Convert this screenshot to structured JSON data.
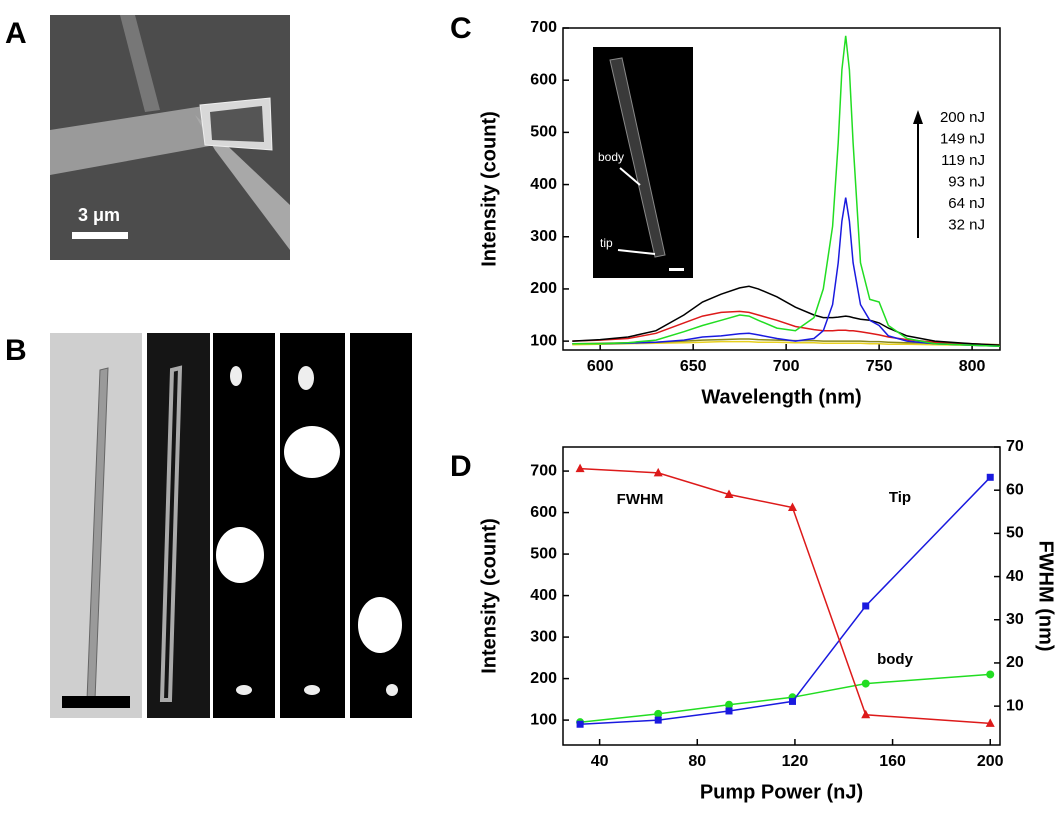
{
  "panel_labels": [
    "A",
    "B",
    "C",
    "D"
  ],
  "scale_bar_label": "3 μm",
  "inset_labels": [
    "body",
    "tip"
  ],
  "chart_data": [
    {
      "type": "line",
      "x_label": "Wavelength (nm)",
      "y_label": "Intensity (count)",
      "xlim": [
        580,
        815
      ],
      "xticks": [
        600,
        650,
        700,
        750,
        800
      ],
      "ylim": [
        83,
        700
      ],
      "yticks": [
        100,
        200,
        300,
        400,
        500,
        600,
        700
      ],
      "legend": "upper right",
      "x": [
        585,
        600,
        615,
        630,
        645,
        655,
        665,
        675,
        680,
        685,
        695,
        705,
        715,
        720,
        725,
        728,
        730,
        732,
        734,
        736,
        740,
        745,
        750,
        755,
        765,
        780,
        800,
        815
      ],
      "series": [
        {
          "name": "200 nJ",
          "color": "#22dd22",
          "values": [
            95,
            95,
            97,
            102,
            118,
            130,
            140,
            150,
            148,
            140,
            125,
            120,
            145,
            200,
            320,
            480,
            620,
            685,
            620,
            480,
            250,
            180,
            175,
            130,
            105,
            95,
            92,
            90
          ]
        },
        {
          "name": "149 nJ",
          "color": "#1a1adf",
          "values": [
            95,
            95,
            96,
            98,
            102,
            108,
            110,
            114,
            115,
            112,
            105,
            100,
            105,
            120,
            170,
            250,
            330,
            375,
            330,
            250,
            170,
            140,
            130,
            110,
            100,
            95,
            92,
            90
          ]
        },
        {
          "name": "119 nJ",
          "color": "#000000",
          "values": [
            100,
            103,
            108,
            120,
            150,
            175,
            190,
            202,
            205,
            200,
            185,
            165,
            150,
            145,
            145,
            146,
            147,
            148,
            147,
            145,
            142,
            140,
            135,
            125,
            110,
            100,
            95,
            92
          ]
        },
        {
          "name": "93 nJ",
          "color": "#dd1a1a",
          "values": [
            100,
            102,
            105,
            115,
            135,
            148,
            155,
            157,
            155,
            150,
            140,
            128,
            122,
            120,
            120,
            121,
            121,
            121,
            120,
            120,
            118,
            115,
            112,
            108,
            103,
            98,
            95,
            92
          ]
        },
        {
          "name": "64 nJ",
          "color": "#8a8a1a",
          "values": [
            95,
            96,
            97,
            98,
            100,
            102,
            103,
            104,
            104,
            103,
            102,
            101,
            101,
            100,
            100,
            100,
            100,
            100,
            100,
            100,
            100,
            99,
            99,
            98,
            97,
            96,
            95,
            93
          ]
        },
        {
          "name": "32 nJ",
          "color": "#e8d020",
          "values": [
            93,
            94,
            95,
            96,
            97,
            98,
            99,
            99,
            99,
            98,
            98,
            97,
            97,
            96,
            96,
            96,
            96,
            96,
            96,
            96,
            96,
            95,
            95,
            94,
            94,
            93,
            92,
            91
          ]
        }
      ]
    },
    {
      "type": "line",
      "x_label": "Pump Power (nJ)",
      "y_label": "Intensity (count)",
      "y2_label": "FWHM (nm)",
      "xlim": [
        25,
        204
      ],
      "xticks": [
        40,
        80,
        120,
        160,
        200
      ],
      "ylim": [
        40,
        758
      ],
      "yticks": [
        100,
        200,
        300,
        400,
        500,
        600,
        700
      ],
      "y2lim": [
        1,
        70
      ],
      "y2ticks": [
        10,
        20,
        30,
        40,
        50,
        60,
        70
      ],
      "x": [
        32,
        64,
        93,
        119,
        149,
        200
      ],
      "series": [
        {
          "name": "FWHM",
          "color": "#dd1a1a",
          "axis": "y2",
          "marker": "triangle",
          "values": [
            65,
            64,
            59,
            56,
            8,
            6
          ]
        },
        {
          "name": "Tip",
          "color": "#1a1adf",
          "marker": "square",
          "values": [
            90,
            100,
            122,
            145,
            375,
            685
          ]
        },
        {
          "name": "body",
          "color": "#22dd22",
          "marker": "circle",
          "values": [
            95,
            115,
            137,
            155,
            188,
            210
          ]
        }
      ]
    }
  ]
}
